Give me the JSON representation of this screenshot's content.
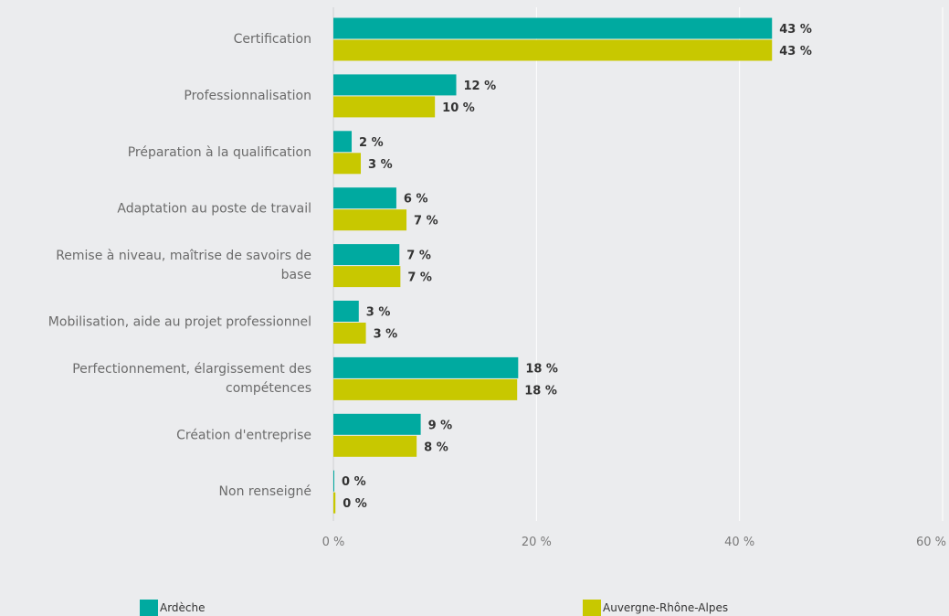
{
  "chart_data": {
    "type": "bar",
    "orientation": "horizontal",
    "categories": [
      "Certification",
      "Professionnalisation",
      "Préparation à la qualification",
      "Adaptation au poste de travail",
      "Remise à niveau, maîtrise de savoirs de base",
      "Mobilisation, aide au projet professionnel",
      "Perfectionnement, élargissement des compétences",
      "Création d'entreprise",
      "Non renseigné"
    ],
    "category_lines": [
      [
        "Certification"
      ],
      [
        "Professionnalisation"
      ],
      [
        "Préparation à la qualification"
      ],
      [
        "Adaptation au poste de travail"
      ],
      [
        "Remise à niveau, maîtrise de savoirs de",
        "base"
      ],
      [
        "Mobilisation, aide au projet professionnel"
      ],
      [
        "Perfectionnement, élargissement des",
        "compétences"
      ],
      [
        "Création d'entreprise"
      ],
      [
        "Non renseigné"
      ]
    ],
    "series": [
      {
        "name": "Ardèche",
        "color": "#00aaa0",
        "values": [
          43.2,
          12.1,
          1.8,
          6.2,
          6.5,
          2.5,
          18.2,
          8.6,
          0
        ],
        "labels": [
          "43 %",
          "12 %",
          "2 %",
          "6 %",
          "7 %",
          "3 %",
          "18 %",
          "9 %",
          "0 %"
        ]
      },
      {
        "name": "Auvergne-Rhône-Alpes",
        "color": "#c8c800",
        "values": [
          43.2,
          10,
          2.7,
          7.2,
          6.6,
          3.2,
          18.1,
          8.2,
          0.2
        ],
        "labels": [
          "43 %",
          "10 %",
          "3 %",
          "7 %",
          "7 %",
          "3 %",
          "18 %",
          "8 %",
          "0 %"
        ]
      }
    ],
    "xlim": [
      0,
      60
    ],
    "xticks": [
      0,
      20,
      40,
      60
    ],
    "xtick_labels": [
      "0 %",
      "20 %",
      "40 %",
      "60 %"
    ],
    "grid": true,
    "legend_position": "bottom"
  }
}
